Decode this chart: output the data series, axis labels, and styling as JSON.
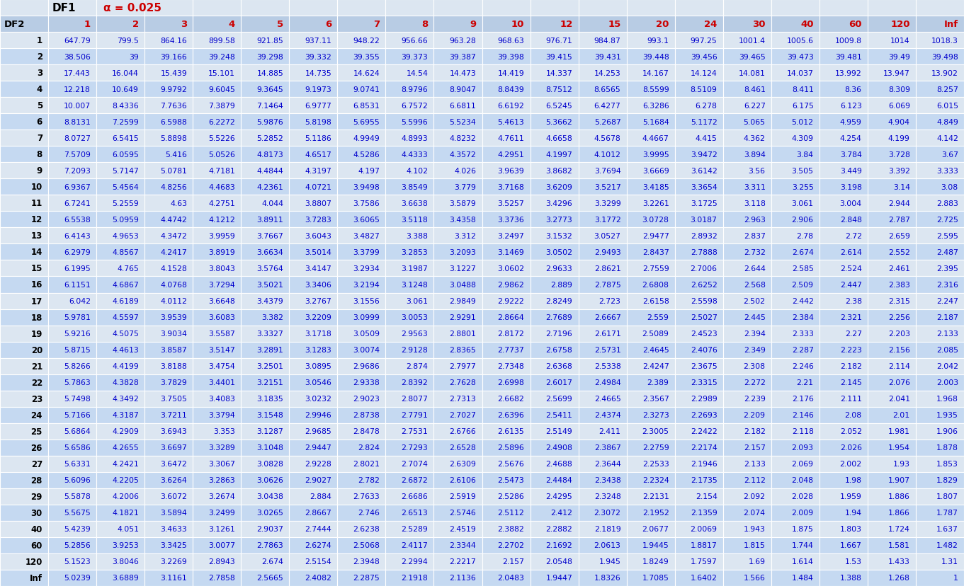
{
  "col_headers": [
    "DF2",
    "1",
    "2",
    "3",
    "4",
    "5",
    "6",
    "7",
    "8",
    "9",
    "10",
    "12",
    "15",
    "20",
    "24",
    "30",
    "40",
    "60",
    "120",
    "Inf"
  ],
  "row_labels": [
    "1",
    "2",
    "3",
    "4",
    "5",
    "6",
    "7",
    "8",
    "9",
    "10",
    "11",
    "12",
    "13",
    "14",
    "15",
    "16",
    "17",
    "18",
    "19",
    "20",
    "21",
    "22",
    "23",
    "24",
    "25",
    "26",
    "27",
    "28",
    "29",
    "30",
    "40",
    "60",
    "120",
    "Inf"
  ],
  "table_data": [
    [
      647.79,
      799.5,
      864.16,
      899.58,
      921.85,
      937.11,
      948.22,
      956.66,
      963.28,
      968.63,
      976.71,
      984.87,
      993.1,
      997.25,
      1001.4,
      1005.6,
      1009.8,
      1014,
      1018.3
    ],
    [
      38.506,
      39,
      39.166,
      39.248,
      39.298,
      39.332,
      39.355,
      39.373,
      39.387,
      39.398,
      39.415,
      39.431,
      39.448,
      39.456,
      39.465,
      39.473,
      39.481,
      39.49,
      39.498
    ],
    [
      17.443,
      16.044,
      15.439,
      15.101,
      14.885,
      14.735,
      14.624,
      14.54,
      14.473,
      14.419,
      14.337,
      14.253,
      14.167,
      14.124,
      14.081,
      14.037,
      13.992,
      13.947,
      13.902
    ],
    [
      12.218,
      10.649,
      9.9792,
      9.6045,
      9.3645,
      9.1973,
      9.0741,
      8.9796,
      8.9047,
      8.8439,
      8.7512,
      8.6565,
      8.5599,
      8.5109,
      8.461,
      8.411,
      8.36,
      8.309,
      8.257
    ],
    [
      10.007,
      8.4336,
      7.7636,
      7.3879,
      7.1464,
      6.9777,
      6.8531,
      6.7572,
      6.6811,
      6.6192,
      6.5245,
      6.4277,
      6.3286,
      6.278,
      6.227,
      6.175,
      6.123,
      6.069,
      6.015
    ],
    [
      8.8131,
      7.2599,
      6.5988,
      6.2272,
      5.9876,
      5.8198,
      5.6955,
      5.5996,
      5.5234,
      5.4613,
      5.3662,
      5.2687,
      5.1684,
      5.1172,
      5.065,
      5.012,
      4.959,
      4.904,
      4.849
    ],
    [
      8.0727,
      6.5415,
      5.8898,
      5.5226,
      5.2852,
      5.1186,
      4.9949,
      4.8993,
      4.8232,
      4.7611,
      4.6658,
      4.5678,
      4.4667,
      4.415,
      4.362,
      4.309,
      4.254,
      4.199,
      4.142
    ],
    [
      7.5709,
      6.0595,
      5.416,
      5.0526,
      4.8173,
      4.6517,
      4.5286,
      4.4333,
      4.3572,
      4.2951,
      4.1997,
      4.1012,
      3.9995,
      3.9472,
      3.894,
      3.84,
      3.784,
      3.728,
      3.67
    ],
    [
      7.2093,
      5.7147,
      5.0781,
      4.7181,
      4.4844,
      4.3197,
      4.197,
      4.102,
      4.026,
      3.9639,
      3.8682,
      3.7694,
      3.6669,
      3.6142,
      3.56,
      3.505,
      3.449,
      3.392,
      3.333
    ],
    [
      6.9367,
      5.4564,
      4.8256,
      4.4683,
      4.2361,
      4.0721,
      3.9498,
      3.8549,
      3.779,
      3.7168,
      3.6209,
      3.5217,
      3.4185,
      3.3654,
      3.311,
      3.255,
      3.198,
      3.14,
      3.08
    ],
    [
      6.7241,
      5.2559,
      4.63,
      4.2751,
      4.044,
      3.8807,
      3.7586,
      3.6638,
      3.5879,
      3.5257,
      3.4296,
      3.3299,
      3.2261,
      3.1725,
      3.118,
      3.061,
      3.004,
      2.944,
      2.883
    ],
    [
      6.5538,
      5.0959,
      4.4742,
      4.1212,
      3.8911,
      3.7283,
      3.6065,
      3.5118,
      3.4358,
      3.3736,
      3.2773,
      3.1772,
      3.0728,
      3.0187,
      2.963,
      2.906,
      2.848,
      2.787,
      2.725
    ],
    [
      6.4143,
      4.9653,
      4.3472,
      3.9959,
      3.7667,
      3.6043,
      3.4827,
      3.388,
      3.312,
      3.2497,
      3.1532,
      3.0527,
      2.9477,
      2.8932,
      2.837,
      2.78,
      2.72,
      2.659,
      2.595
    ],
    [
      6.2979,
      4.8567,
      4.2417,
      3.8919,
      3.6634,
      3.5014,
      3.3799,
      3.2853,
      3.2093,
      3.1469,
      3.0502,
      2.9493,
      2.8437,
      2.7888,
      2.732,
      2.674,
      2.614,
      2.552,
      2.487
    ],
    [
      6.1995,
      4.765,
      4.1528,
      3.8043,
      3.5764,
      3.4147,
      3.2934,
      3.1987,
      3.1227,
      3.0602,
      2.9633,
      2.8621,
      2.7559,
      2.7006,
      2.644,
      2.585,
      2.524,
      2.461,
      2.395
    ],
    [
      6.1151,
      4.6867,
      4.0768,
      3.7294,
      3.5021,
      3.3406,
      3.2194,
      3.1248,
      3.0488,
      2.9862,
      2.889,
      2.7875,
      2.6808,
      2.6252,
      2.568,
      2.509,
      2.447,
      2.383,
      2.316
    ],
    [
      6.042,
      4.6189,
      4.0112,
      3.6648,
      3.4379,
      3.2767,
      3.1556,
      3.061,
      2.9849,
      2.9222,
      2.8249,
      2.723,
      2.6158,
      2.5598,
      2.502,
      2.442,
      2.38,
      2.315,
      2.247
    ],
    [
      5.9781,
      4.5597,
      3.9539,
      3.6083,
      3.382,
      3.2209,
      3.0999,
      3.0053,
      2.9291,
      2.8664,
      2.7689,
      2.6667,
      2.559,
      2.5027,
      2.445,
      2.384,
      2.321,
      2.256,
      2.187
    ],
    [
      5.9216,
      4.5075,
      3.9034,
      3.5587,
      3.3327,
      3.1718,
      3.0509,
      2.9563,
      2.8801,
      2.8172,
      2.7196,
      2.6171,
      2.5089,
      2.4523,
      2.394,
      2.333,
      2.27,
      2.203,
      2.133
    ],
    [
      5.8715,
      4.4613,
      3.8587,
      3.5147,
      3.2891,
      3.1283,
      3.0074,
      2.9128,
      2.8365,
      2.7737,
      2.6758,
      2.5731,
      2.4645,
      2.4076,
      2.349,
      2.287,
      2.223,
      2.156,
      2.085
    ],
    [
      5.8266,
      4.4199,
      3.8188,
      3.4754,
      3.2501,
      3.0895,
      2.9686,
      2.874,
      2.7977,
      2.7348,
      2.6368,
      2.5338,
      2.4247,
      2.3675,
      2.308,
      2.246,
      2.182,
      2.114,
      2.042
    ],
    [
      5.7863,
      4.3828,
      3.7829,
      3.4401,
      3.2151,
      3.0546,
      2.9338,
      2.8392,
      2.7628,
      2.6998,
      2.6017,
      2.4984,
      2.389,
      2.3315,
      2.272,
      2.21,
      2.145,
      2.076,
      2.003
    ],
    [
      5.7498,
      4.3492,
      3.7505,
      3.4083,
      3.1835,
      3.0232,
      2.9023,
      2.8077,
      2.7313,
      2.6682,
      2.5699,
      2.4665,
      2.3567,
      2.2989,
      2.239,
      2.176,
      2.111,
      2.041,
      1.968
    ],
    [
      5.7166,
      4.3187,
      3.7211,
      3.3794,
      3.1548,
      2.9946,
      2.8738,
      2.7791,
      2.7027,
      2.6396,
      2.5411,
      2.4374,
      2.3273,
      2.2693,
      2.209,
      2.146,
      2.08,
      2.01,
      1.935
    ],
    [
      5.6864,
      4.2909,
      3.6943,
      3.353,
      3.1287,
      2.9685,
      2.8478,
      2.7531,
      2.6766,
      2.6135,
      2.5149,
      2.411,
      2.3005,
      2.2422,
      2.182,
      2.118,
      2.052,
      1.981,
      1.906
    ],
    [
      5.6586,
      4.2655,
      3.6697,
      3.3289,
      3.1048,
      2.9447,
      2.824,
      2.7293,
      2.6528,
      2.5896,
      2.4908,
      2.3867,
      2.2759,
      2.2174,
      2.157,
      2.093,
      2.026,
      1.954,
      1.878
    ],
    [
      5.6331,
      4.2421,
      3.6472,
      3.3067,
      3.0828,
      2.9228,
      2.8021,
      2.7074,
      2.6309,
      2.5676,
      2.4688,
      2.3644,
      2.2533,
      2.1946,
      2.133,
      2.069,
      2.002,
      1.93,
      1.853
    ],
    [
      5.6096,
      4.2205,
      3.6264,
      3.2863,
      3.0626,
      2.9027,
      2.782,
      2.6872,
      2.6106,
      2.5473,
      2.4484,
      2.3438,
      2.2324,
      2.1735,
      2.112,
      2.048,
      1.98,
      1.907,
      1.829
    ],
    [
      5.5878,
      4.2006,
      3.6072,
      3.2674,
      3.0438,
      2.884,
      2.7633,
      2.6686,
      2.5919,
      2.5286,
      2.4295,
      2.3248,
      2.2131,
      2.154,
      2.092,
      2.028,
      1.959,
      1.886,
      1.807
    ],
    [
      5.5675,
      4.1821,
      3.5894,
      3.2499,
      3.0265,
      2.8667,
      2.746,
      2.6513,
      2.5746,
      2.5112,
      2.412,
      2.3072,
      2.1952,
      2.1359,
      2.074,
      2.009,
      1.94,
      1.866,
      1.787
    ],
    [
      5.4239,
      4.051,
      3.4633,
      3.1261,
      2.9037,
      2.7444,
      2.6238,
      2.5289,
      2.4519,
      2.3882,
      2.2882,
      2.1819,
      2.0677,
      2.0069,
      1.943,
      1.875,
      1.803,
      1.724,
      1.637
    ],
    [
      5.2856,
      3.9253,
      3.3425,
      3.0077,
      2.7863,
      2.6274,
      2.5068,
      2.4117,
      2.3344,
      2.2702,
      2.1692,
      2.0613,
      1.9445,
      1.8817,
      1.815,
      1.744,
      1.667,
      1.581,
      1.482
    ],
    [
      5.1523,
      3.8046,
      3.2269,
      2.8943,
      2.674,
      2.5154,
      2.3948,
      2.2994,
      2.2217,
      2.157,
      2.0548,
      1.945,
      1.8249,
      1.7597,
      1.69,
      1.614,
      1.53,
      1.433,
      1.31
    ],
    [
      5.0239,
      3.6889,
      3.1161,
      2.7858,
      2.5665,
      2.4082,
      2.2875,
      2.1918,
      2.1136,
      2.0483,
      1.9447,
      1.8326,
      1.7085,
      1.6402,
      1.566,
      1.484,
      1.388,
      1.268,
      1
    ]
  ],
  "color_row_even": "#dce6f1",
  "color_row_odd": "#c5d9f1",
  "color_header2": "#b8cce4",
  "color_header1": "#dce6f1",
  "color_border": "#ffffff",
  "color_data_text": "#0000cd",
  "color_header_text": "#cc0000",
  "color_rowlabel_text": "#000000",
  "color_topleft_text_df1": "#000000",
  "color_topleft_text_alpha": "#cc0000",
  "header1_label1": "DF1",
  "header1_label2": "α = 0.025",
  "header2_rowlabel": "DF2"
}
